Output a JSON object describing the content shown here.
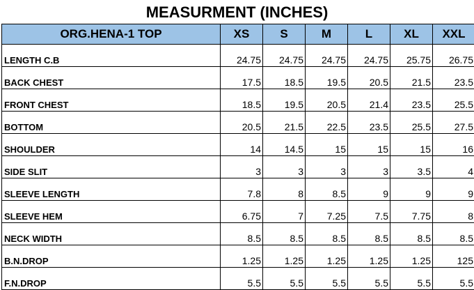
{
  "title": "MEASURMENT (INCHES)",
  "header": {
    "item": "ORG.HENA-1 TOP",
    "sizes": [
      "XS",
      "S",
      "M",
      "L",
      "XL",
      "XXL"
    ]
  },
  "rows": [
    {
      "label": "LENGTH C.B",
      "values": [
        "24.75",
        "24.75",
        "24.75",
        "24.75",
        "25.75",
        "26.75"
      ]
    },
    {
      "label": "BACK CHEST",
      "values": [
        "17.5",
        "18.5",
        "19.5",
        "20.5",
        "21.5",
        "23.5"
      ]
    },
    {
      "label": "FRONT CHEST",
      "values": [
        "18.5",
        "19.5",
        "20.5",
        "21.4",
        "23.5",
        "25.5"
      ]
    },
    {
      "label": "BOTTOM",
      "values": [
        "20.5",
        "21.5",
        "22.5",
        "23.5",
        "25.5",
        "27.5"
      ]
    },
    {
      "label": "SHOULDER",
      "values": [
        "14",
        "14.5",
        "15",
        "15",
        "15",
        "16"
      ]
    },
    {
      "label": "SIDE SLIT",
      "values": [
        "3",
        "3",
        "3",
        "3",
        "3.5",
        "4"
      ]
    },
    {
      "label": "SLEEVE LENGTH",
      "values": [
        "7.8",
        "8",
        "8.5",
        "9",
        "9",
        "9"
      ]
    },
    {
      "label": "SLEEVE HEM",
      "values": [
        "6.75",
        "7",
        "7.25",
        "7.5",
        "7.75",
        "8"
      ]
    },
    {
      "label": "NECK WIDTH",
      "values": [
        "8.5",
        "8.5",
        "8.5",
        "8.5",
        "8.5",
        "8.5"
      ]
    },
    {
      "label": "B.N.DROP",
      "values": [
        "1.25",
        "1.25",
        "1.25",
        "1.25",
        "1.25",
        "125"
      ]
    },
    {
      "label": "F.N.DROP",
      "values": [
        "5.5",
        "5.5",
        "5.5",
        "5.5",
        "5.5",
        "5.5"
      ]
    }
  ],
  "colors": {
    "header_fill": "#9dc3e6",
    "grid": "#000000"
  }
}
